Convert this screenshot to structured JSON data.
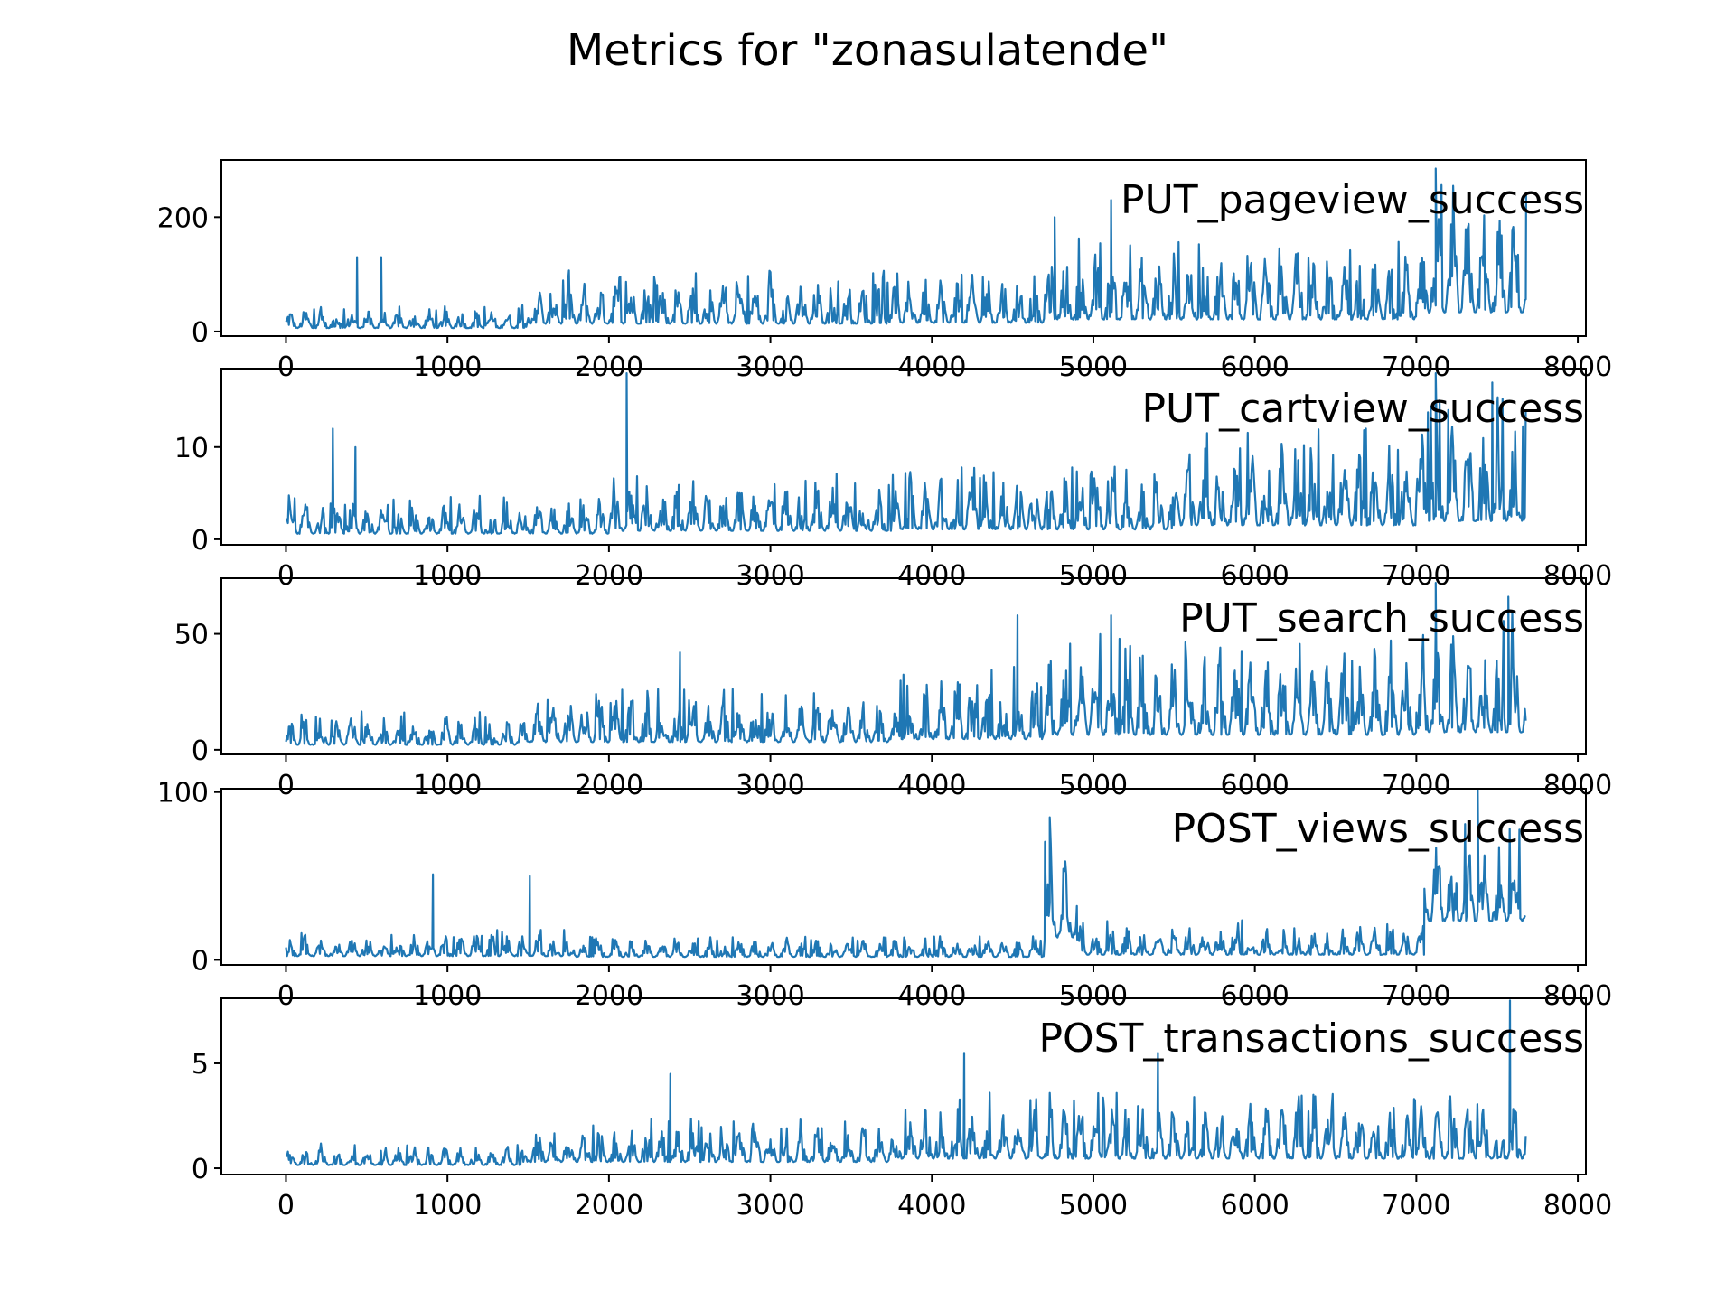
{
  "figure": {
    "title": "Metrics for \"zonasulatende\""
  },
  "chart_data": [
    {
      "type": "line",
      "series": [
        {
          "name": "PUT_pageview_success",
          "color": "#1f77b4"
        }
      ],
      "x_range": [
        0,
        7680
      ],
      "xlim": [
        -400,
        8050
      ],
      "ylim": [
        -8,
        300
      ],
      "x_ticks": [
        0,
        1000,
        2000,
        3000,
        4000,
        5000,
        6000,
        7000,
        8000
      ],
      "y_ticks": [
        0,
        200
      ],
      "segments": [
        {
          "x": [
            0,
            1500
          ],
          "lo": 0,
          "hi": 40
        },
        {
          "x": [
            1500,
            3800
          ],
          "lo": 0,
          "hi": 90
        },
        {
          "x": [
            3800,
            4700
          ],
          "lo": 0,
          "hi": 100
        },
        {
          "x": [
            4700,
            7000
          ],
          "lo": 0,
          "hi": 140
        },
        {
          "x": [
            7000,
            7680
          ],
          "lo": 0,
          "hi": 220
        }
      ],
      "spikes": [
        [
          440,
          130
        ],
        [
          590,
          130
        ],
        [
          4760,
          200
        ],
        [
          5110,
          230
        ],
        [
          7120,
          285
        ],
        [
          7680,
          240
        ]
      ]
    },
    {
      "type": "line",
      "series": [
        {
          "name": "PUT_cartview_success",
          "color": "#1f77b4"
        }
      ],
      "x_range": [
        0,
        7680
      ],
      "xlim": [
        -400,
        8050
      ],
      "ylim": [
        -0.6,
        18.5
      ],
      "x_ticks": [
        0,
        1000,
        2000,
        3000,
        4000,
        5000,
        6000,
        7000,
        8000
      ],
      "y_ticks": [
        0,
        10
      ],
      "segments": [
        {
          "x": [
            0,
            2000
          ],
          "lo": 0,
          "hi": 4
        },
        {
          "x": [
            2000,
            3800
          ],
          "lo": 0,
          "hi": 6
        },
        {
          "x": [
            3800,
            5500
          ],
          "lo": 0,
          "hi": 7
        },
        {
          "x": [
            5500,
            7000
          ],
          "lo": 0,
          "hi": 10
        },
        {
          "x": [
            7000,
            7680
          ],
          "lo": 0,
          "hi": 13
        }
      ],
      "spikes": [
        [
          290,
          12
        ],
        [
          430,
          10
        ],
        [
          2110,
          18
        ],
        [
          7120,
          18
        ],
        [
          7470,
          17
        ]
      ]
    },
    {
      "type": "line",
      "series": [
        {
          "name": "PUT_search_success",
          "color": "#1f77b4"
        }
      ],
      "x_range": [
        0,
        7680
      ],
      "xlim": [
        -400,
        8050
      ],
      "ylim": [
        -2,
        74
      ],
      "x_ticks": [
        0,
        1000,
        2000,
        3000,
        4000,
        5000,
        6000,
        7000,
        8000
      ],
      "y_ticks": [
        0,
        50
      ],
      "segments": [
        {
          "x": [
            0,
            1500
          ],
          "lo": 0,
          "hi": 14
        },
        {
          "x": [
            1500,
            3800
          ],
          "lo": 0,
          "hi": 22
        },
        {
          "x": [
            3800,
            4700
          ],
          "lo": 0,
          "hi": 30
        },
        {
          "x": [
            4700,
            7000
          ],
          "lo": 0,
          "hi": 42
        },
        {
          "x": [
            7000,
            7680
          ],
          "lo": 0,
          "hi": 50
        }
      ],
      "spikes": [
        [
          2440,
          42
        ],
        [
          4530,
          58
        ],
        [
          5110,
          58
        ],
        [
          7120,
          72
        ],
        [
          7570,
          66
        ]
      ]
    },
    {
      "type": "line",
      "series": [
        {
          "name": "POST_views_success",
          "color": "#1f77b4"
        }
      ],
      "x_range": [
        0,
        7680
      ],
      "xlim": [
        -400,
        8050
      ],
      "ylim": [
        -3,
        102
      ],
      "x_ticks": [
        0,
        1000,
        2000,
        3000,
        4000,
        5000,
        6000,
        7000,
        8000
      ],
      "y_ticks": [
        0,
        100
      ],
      "segments": [
        {
          "x": [
            0,
            1800
          ],
          "lo": 0,
          "hi": 15
        },
        {
          "x": [
            1800,
            4700
          ],
          "lo": 0,
          "hi": 12
        },
        {
          "x": [
            4700,
            4900
          ],
          "lo": 5,
          "hi": 60
        },
        {
          "x": [
            4900,
            7050
          ],
          "lo": 0,
          "hi": 20
        },
        {
          "x": [
            7050,
            7680
          ],
          "lo": 15,
          "hi": 70
        }
      ],
      "spikes": [
        [
          910,
          51
        ],
        [
          1510,
          50
        ],
        [
          4730,
          85
        ],
        [
          7380,
          103
        ]
      ]
    },
    {
      "type": "line",
      "series": [
        {
          "name": "POST_transactions_success",
          "color": "#1f77b4"
        }
      ],
      "x_range": [
        0,
        7680
      ],
      "xlim": [
        -400,
        8050
      ],
      "ylim": [
        -0.3,
        8.1
      ],
      "x_ticks": [
        0,
        1000,
        2000,
        3000,
        4000,
        5000,
        6000,
        7000,
        8000
      ],
      "y_ticks": [
        0,
        5
      ],
      "segments": [
        {
          "x": [
            0,
            1500
          ],
          "lo": 0,
          "hi": 1
        },
        {
          "x": [
            1500,
            3800
          ],
          "lo": 0,
          "hi": 2
        },
        {
          "x": [
            3800,
            7000
          ],
          "lo": 0,
          "hi": 3
        },
        {
          "x": [
            7000,
            7680
          ],
          "lo": 0,
          "hi": 3
        }
      ],
      "spikes": [
        [
          2380,
          4.5
        ],
        [
          4200,
          5.5
        ],
        [
          5400,
          5.5
        ],
        [
          7580,
          8
        ]
      ]
    }
  ]
}
